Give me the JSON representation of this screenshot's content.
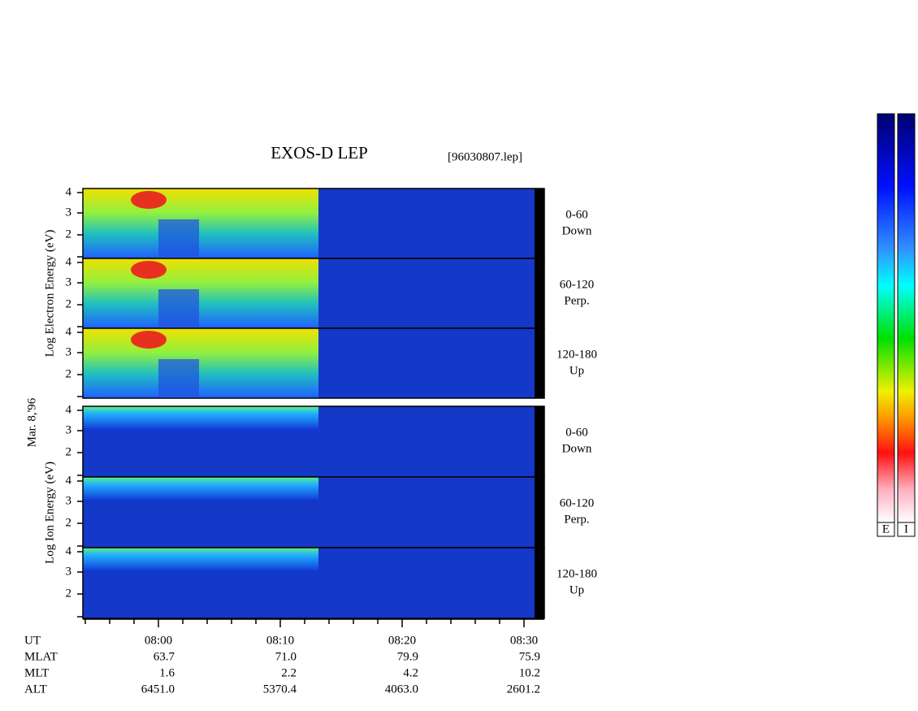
{
  "title": "EXOS-D LEP",
  "file": "[96030807.lep]",
  "date": "Mar. 8,'96",
  "electron_axis_label": "Log Electron Energy (eV)",
  "ion_axis_label": "Log Ion Energy (eV)",
  "energy_ticks": [
    "4",
    "3",
    "2"
  ],
  "electron_panels": [
    {
      "angle": "0-60",
      "direction": "Down"
    },
    {
      "angle": "60-120",
      "direction": "Perp."
    },
    {
      "angle": "120-180",
      "direction": "Up"
    }
  ],
  "ion_panels": [
    {
      "angle": "0-60",
      "direction": "Down"
    },
    {
      "angle": "60-120",
      "direction": "Perp."
    },
    {
      "angle": "120-180",
      "direction": "Up"
    }
  ],
  "time_axis": {
    "name": "UT",
    "labels": [
      "08:00",
      "08:10",
      "08:20",
      "08:30"
    ]
  },
  "rows": [
    {
      "name": "MLAT",
      "values": [
        "63.7",
        "71.0",
        "79.9",
        "75.9"
      ]
    },
    {
      "name": "MLT",
      "values": [
        "1.6",
        "2.2",
        "4.2",
        "10.2"
      ]
    },
    {
      "name": "ALT",
      "values": [
        "6451.0",
        "5370.4",
        "4063.0",
        "2601.2"
      ]
    }
  ],
  "colorbars": [
    "E",
    "I"
  ]
}
